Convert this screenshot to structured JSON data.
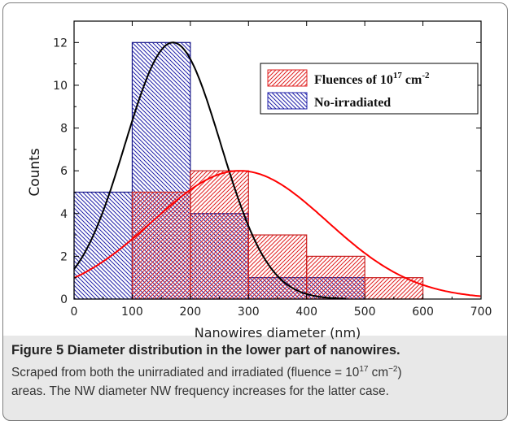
{
  "chart_data": {
    "type": "bar",
    "xlabel": "Nanowires diameter (nm)",
    "ylabel": "Counts",
    "xlim": [
      0,
      700
    ],
    "ylim": [
      0,
      13
    ],
    "xticks": [
      0,
      100,
      200,
      300,
      400,
      500,
      600,
      700
    ],
    "yticks": [
      0,
      2,
      4,
      6,
      8,
      10,
      12
    ],
    "legend_position": "top-right",
    "bin_edges": [
      0,
      100,
      200,
      300,
      400,
      500,
      600
    ],
    "series": [
      {
        "name": "No-irradiated",
        "color": "#1f1fa8",
        "pattern": "back-diagonal hatch",
        "values": [
          5,
          12,
          4,
          1,
          1,
          0
        ],
        "fit": {
          "type": "gaussian",
          "amplitude": 12,
          "center": 170,
          "sigma": 82,
          "color": "#000000"
        }
      },
      {
        "name": "Fluences of 10",
        "name_sup": "17",
        "name_unit": " cm",
        "name_unit_sup": "-2",
        "color": "#e02020",
        "pattern": "forward-diagonal hatch",
        "values": [
          0,
          5,
          6,
          3,
          2,
          1
        ],
        "fit": {
          "type": "gaussian",
          "amplitude": 6,
          "center": 285,
          "sigma": 150,
          "color": "#ff0000"
        }
      }
    ]
  },
  "caption": {
    "title": "Figure 5 Diameter distribution in the lower part of nanowires.",
    "line2_a": "Scraped from both the unirradiated and irradiated (fluence = 10",
    "line2_sup": "17",
    "line2_b": " cm",
    "line2_sup2": "−2",
    "line2_c": ")",
    "line3": "areas. The NW diameter NW frequency increases for the latter case."
  }
}
